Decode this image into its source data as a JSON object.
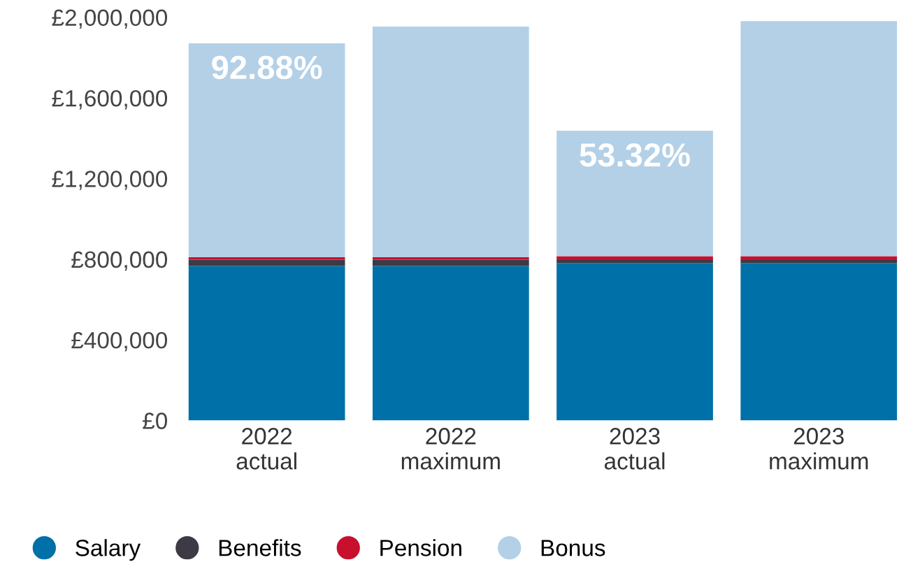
{
  "chart_data": {
    "type": "bar",
    "stacked": true,
    "categories": [
      "2022\nactual",
      "2022\nmaximum",
      "2023\nactual",
      "2023\nmaximum"
    ],
    "series": [
      {
        "name": "Salary",
        "color": "#0070a8",
        "values": [
          766000,
          766000,
          781000,
          781000
        ]
      },
      {
        "name": "Benefits",
        "color": "#3d3a45",
        "values": [
          32000,
          32000,
          15000,
          15000
        ]
      },
      {
        "name": "Pension",
        "color": "#c8102e",
        "values": [
          12000,
          12000,
          19000,
          19000
        ]
      },
      {
        "name": "Bonus",
        "color": "#b3d0e7",
        "values": [
          1061000,
          1144000,
          622000,
          1166000
        ]
      }
    ],
    "annotations": [
      {
        "text": "92.88%",
        "x": "2022\nactual",
        "y": 1871000
      },
      {
        "text": "53.32%",
        "x": "2023\nactual",
        "y": 1437000
      }
    ],
    "ylim": [
      0,
      2000000
    ],
    "yticks": [
      {
        "value": 0,
        "label": "£0"
      },
      {
        "value": 400000,
        "label": "£400,000"
      },
      {
        "value": 800000,
        "label": "£800,000"
      },
      {
        "value": 1200000,
        "label": "£1,200,000"
      },
      {
        "value": 1600000,
        "label": "£1,600,000"
      },
      {
        "value": 2000000,
        "label": "£2,000,000"
      }
    ],
    "grid": false,
    "legend": "bottom left"
  }
}
